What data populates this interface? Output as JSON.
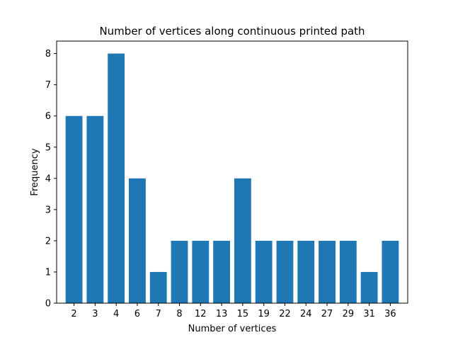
{
  "chart_data": {
    "type": "bar",
    "title": "Number of vertices along continuous printed path",
    "xlabel": "Number of vertices",
    "ylabel": "Frequency",
    "categories": [
      "2",
      "3",
      "4",
      "6",
      "7",
      "8",
      "12",
      "13",
      "15",
      "19",
      "22",
      "24",
      "27",
      "29",
      "31",
      "36"
    ],
    "values": [
      6,
      6,
      8,
      4,
      1,
      2,
      2,
      2,
      4,
      2,
      2,
      2,
      2,
      2,
      1,
      2
    ],
    "ylim": [
      0,
      8.4
    ],
    "yticks": [
      0,
      1,
      2,
      3,
      4,
      5,
      6,
      7,
      8
    ],
    "bar_color": "#1f77b4",
    "grid": false,
    "legend": "none"
  }
}
